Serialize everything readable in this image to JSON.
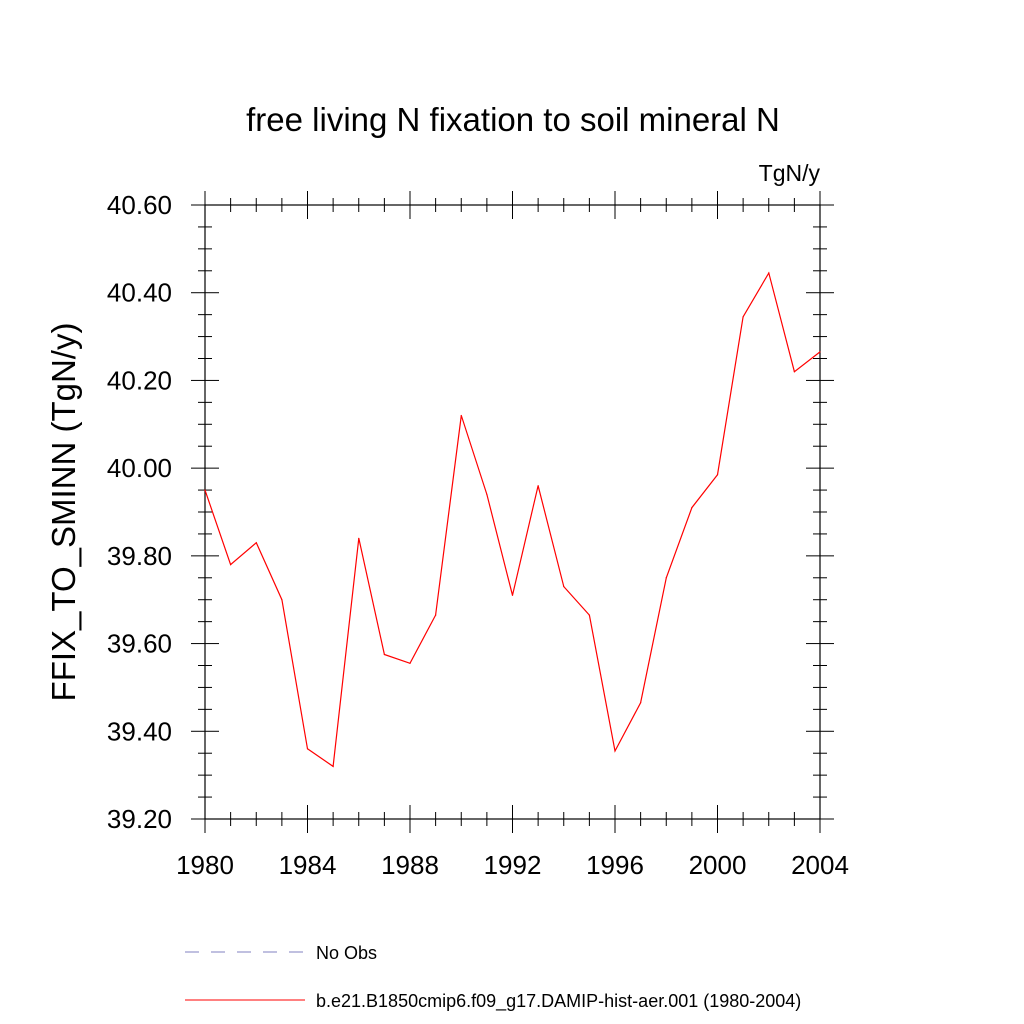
{
  "chart_data": {
    "type": "line",
    "title": "free living N fixation to soil mineral N",
    "units_label": "TgN/y",
    "ylabel": "FFIX_TO_SMINN  (TgN/y)",
    "xlabel": "",
    "xlim": [
      1980,
      2004
    ],
    "ylim": [
      39.2,
      40.6
    ],
    "x_ticks": [
      "1980",
      "1984",
      "1988",
      "1992",
      "1996",
      "2000",
      "2004"
    ],
    "y_ticks": [
      "39.20",
      "39.40",
      "39.60",
      "39.80",
      "40.00",
      "40.20",
      "40.40",
      "40.60"
    ],
    "x": [
      1980,
      1981,
      1982,
      1983,
      1984,
      1985,
      1986,
      1987,
      1988,
      1989,
      1990,
      1991,
      1992,
      1993,
      1994,
      1995,
      1996,
      1997,
      1998,
      1999,
      2000,
      2001,
      2002,
      2003,
      2004
    ],
    "series": [
      {
        "name": "b.e21.B1850cmip6.f09_g17.DAMIP-hist-aer.001 (1980-2004)",
        "color": "#ff0000",
        "dash": "solid",
        "values": [
          39.95,
          39.78,
          39.83,
          39.7,
          39.36,
          39.32,
          39.84,
          39.575,
          39.555,
          39.665,
          40.12,
          39.94,
          39.71,
          39.96,
          39.73,
          39.665,
          39.355,
          39.465,
          39.75,
          39.91,
          39.985,
          40.345,
          40.445,
          40.22,
          40.265
        ]
      }
    ],
    "legend": [
      {
        "label": "No Obs",
        "color": "#8080c0",
        "dash": "dashed"
      },
      {
        "label": "b.e21.B1850cmip6.f09_g17.DAMIP-hist-aer.001 (1980-2004)",
        "color": "#ff0000",
        "dash": "solid"
      }
    ],
    "legend_placement": "bottom",
    "grid": false
  }
}
